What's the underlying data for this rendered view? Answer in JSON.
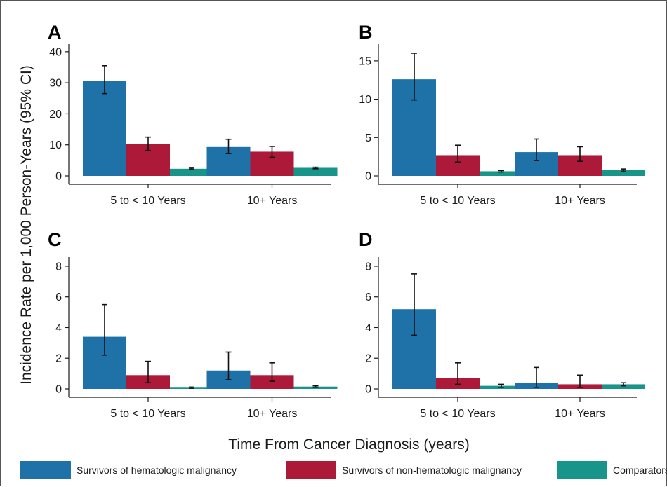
{
  "figure": {
    "y_axis_title": "Incidence Rate per 1,000 Person-Years (95% CI)",
    "x_axis_title": "Time From Cancer Diagnosis (years)",
    "legend": [
      {
        "label": "Survivors of hematologic malignancy",
        "color": "#1f72a8"
      },
      {
        "label": "Survivors of non-hematologic malignancy",
        "color": "#ad1a39"
      },
      {
        "label": "Comparators",
        "color": "#17958a"
      }
    ]
  },
  "chart_data": [
    {
      "panel": "A",
      "type": "bar",
      "categories": [
        "5 to < 10 Years",
        "10+ Years"
      ],
      "ylim": [
        0,
        42
      ],
      "yticks": [
        0,
        10,
        20,
        30,
        40
      ],
      "series": [
        {
          "name": "Survivors of hematologic malignancy",
          "values": [
            30.5,
            9.3
          ],
          "ci_low": [
            26.5,
            7.2
          ],
          "ci_high": [
            35.5,
            11.8
          ]
        },
        {
          "name": "Survivors of non-hematologic malignancy",
          "values": [
            10.3,
            7.8
          ],
          "ci_low": [
            8.2,
            6.0
          ],
          "ci_high": [
            12.5,
            9.5
          ]
        },
        {
          "name": "Comparators",
          "values": [
            2.3,
            2.6
          ],
          "ci_low": [
            2.1,
            2.3
          ],
          "ci_high": [
            2.5,
            2.8
          ]
        }
      ]
    },
    {
      "panel": "B",
      "type": "bar",
      "categories": [
        "5 to < 10 Years",
        "10+ Years"
      ],
      "ylim": [
        0,
        17
      ],
      "yticks": [
        0,
        5,
        10,
        15
      ],
      "series": [
        {
          "name": "Survivors of hematologic malignancy",
          "values": [
            12.6,
            3.1
          ],
          "ci_low": [
            9.9,
            2.0
          ],
          "ci_high": [
            16.0,
            4.8
          ]
        },
        {
          "name": "Survivors of non-hematologic malignancy",
          "values": [
            2.7,
            2.7
          ],
          "ci_low": [
            1.8,
            1.9
          ],
          "ci_high": [
            4.0,
            3.8
          ]
        },
        {
          "name": "Comparators",
          "values": [
            0.6,
            0.75
          ],
          "ci_low": [
            0.5,
            0.6
          ],
          "ci_high": [
            0.7,
            0.9
          ]
        }
      ]
    },
    {
      "panel": "C",
      "type": "bar",
      "categories": [
        "5 to < 10 Years",
        "10+ Years"
      ],
      "ylim": [
        0,
        8.5
      ],
      "yticks": [
        0,
        2,
        4,
        6,
        8
      ],
      "series": [
        {
          "name": "Survivors of hematologic malignancy",
          "values": [
            3.4,
            1.2
          ],
          "ci_low": [
            2.2,
            0.6
          ],
          "ci_high": [
            5.5,
            2.4
          ]
        },
        {
          "name": "Survivors of non-hematologic malignancy",
          "values": [
            0.9,
            0.9
          ],
          "ci_low": [
            0.4,
            0.5
          ],
          "ci_high": [
            1.8,
            1.7
          ]
        },
        {
          "name": "Comparators",
          "values": [
            0.08,
            0.15
          ],
          "ci_low": [
            0.04,
            0.1
          ],
          "ci_high": [
            0.12,
            0.2
          ]
        }
      ]
    },
    {
      "panel": "D",
      "type": "bar",
      "categories": [
        "5 to < 10 Years",
        "10+ Years"
      ],
      "ylim": [
        0,
        8.5
      ],
      "yticks": [
        0,
        2,
        4,
        6,
        8
      ],
      "series": [
        {
          "name": "Survivors of hematologic malignancy",
          "values": [
            5.2,
            0.4
          ],
          "ci_low": [
            3.5,
            0.1
          ],
          "ci_high": [
            7.5,
            1.4
          ]
        },
        {
          "name": "Survivors of non-hematologic malignancy",
          "values": [
            0.7,
            0.3
          ],
          "ci_low": [
            0.3,
            0.1
          ],
          "ci_high": [
            1.7,
            0.9
          ]
        },
        {
          "name": "Comparators",
          "values": [
            0.2,
            0.3
          ],
          "ci_low": [
            0.1,
            0.2
          ],
          "ci_high": [
            0.3,
            0.4
          ]
        }
      ]
    }
  ]
}
